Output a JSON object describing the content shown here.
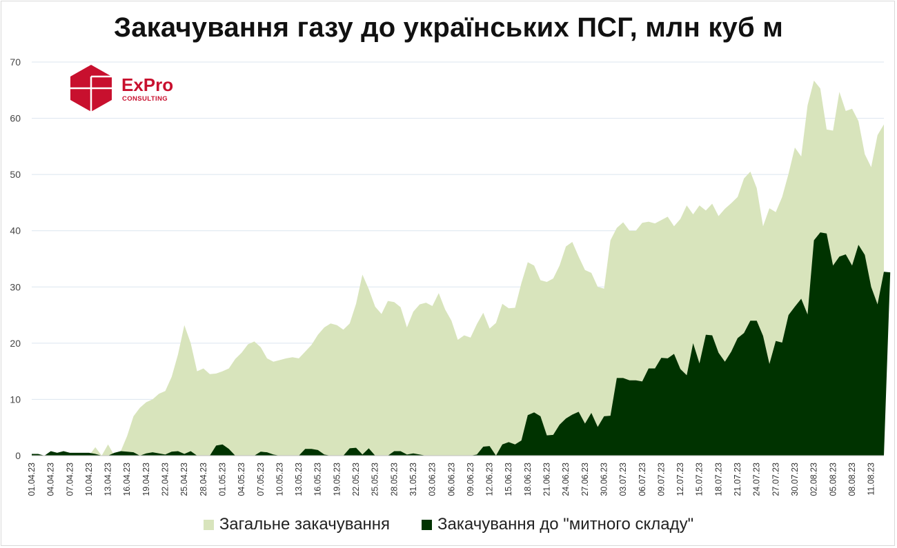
{
  "title": "Закачування газу до українських ПСГ, млн куб м",
  "logo": {
    "word": "ExPro",
    "sub": "CONSULTING",
    "color": "#c8102e"
  },
  "chart_data": {
    "type": "area",
    "title": "Закачування газу до українських ПСГ, млн куб м",
    "ylim": [
      0,
      70
    ],
    "yticks": [
      0,
      10,
      20,
      30,
      40,
      50,
      60,
      70
    ],
    "grid": true,
    "legend_position": "bottom",
    "x_tick_labels": [
      "01.04.23",
      "04.04.23",
      "07.04.23",
      "10.04.23",
      "13.04.23",
      "16.04.23",
      "19.04.23",
      "22.04.23",
      "25.04.23",
      "28.04.23",
      "01.05.23",
      "04.05.23",
      "07.05.23",
      "10.05.23",
      "13.05.23",
      "16.05.23",
      "19.05.23",
      "22.05.23",
      "25.05.23",
      "28.05.23",
      "31.05.23",
      "03.06.23",
      "06.06.23",
      "09.06.23",
      "12.06.23",
      "15.06.23",
      "18.06.23",
      "21.06.23",
      "24.06.23",
      "27.06.23",
      "30.06.23",
      "03.07.23",
      "06.07.23",
      "09.07.23",
      "12.07.23",
      "15.07.23",
      "18.07.23",
      "21.07.23",
      "24.07.23",
      "27.07.23",
      "30.07.23",
      "02.08.23",
      "05.08.23",
      "08.08.23",
      "11.08.23"
    ],
    "x_start": "01.04.23",
    "x_end": "13.08.23",
    "series": [
      {
        "name": "Загальне закачування",
        "color": "#d8e4bc",
        "values": [
          0.3,
          0.3,
          0,
          0.2,
          0,
          0,
          0,
          0,
          0,
          0,
          1.5,
          0,
          2,
          0,
          0.8,
          3.5,
          7,
          8.5,
          9.5,
          10,
          11,
          11.5,
          14,
          18,
          23.2,
          20,
          15,
          15.5,
          14.5,
          14.6,
          15,
          15.5,
          17.2,
          18.3,
          19.8,
          20.3,
          19.3,
          17.3,
          16.7,
          17,
          17.3,
          17.5,
          17.3,
          18.5,
          19.7,
          21.5,
          22.8,
          23.5,
          23.2,
          22.4,
          23.5,
          27,
          32.2,
          29.6,
          26.5,
          25.2,
          27.5,
          27.3,
          26.4,
          22.8,
          25.6,
          26.9,
          27.2,
          26.6,
          28.9,
          26,
          24,
          20.6,
          21.4,
          21,
          23.4,
          25.4,
          22.6,
          23.6,
          27,
          26.2,
          26.3,
          30.7,
          34.4,
          33.8,
          31.2,
          30.9,
          31.5,
          33.8,
          37.2,
          38,
          35.4,
          33,
          32.5,
          30,
          29.7,
          38.3,
          40.5,
          41.5,
          40,
          40,
          41.4,
          41.6,
          41.3,
          41.9,
          42.5,
          40.8,
          42.1,
          44.5,
          42.9,
          44.5,
          43.6,
          44.8,
          42.6,
          43.9,
          44.9,
          46,
          49.3,
          50.5,
          47.6,
          40.8,
          44,
          43.3,
          46,
          50.1,
          54.8,
          53.2,
          62.3,
          66.7,
          65.3,
          58,
          57.8,
          64.7,
          61.3,
          61.7,
          59.5,
          53.6,
          51.3,
          57,
          58.9
        ]
      },
      {
        "name": "Закачування до \"митного складу\"",
        "color": "#003300",
        "values": [
          0.3,
          0.3,
          0,
          0.8,
          0.5,
          0.8,
          0.5,
          0.5,
          0.5,
          0.5,
          0.3,
          0,
          0,
          0.5,
          0.8,
          0.7,
          0.6,
          0,
          0.4,
          0.6,
          0.4,
          0.2,
          0.7,
          0.8,
          0.3,
          0.8,
          0,
          0,
          0,
          1.8,
          2,
          1.2,
          0,
          0,
          0,
          0,
          0.7,
          0.6,
          0.2,
          0,
          0,
          0,
          0,
          1.2,
          1.2,
          1,
          0.2,
          0,
          0,
          0,
          1.3,
          1.4,
          0.2,
          1.3,
          0,
          0,
          0,
          0.8,
          0.8,
          0.2,
          0.4,
          0.2,
          0,
          0,
          0,
          0,
          0,
          0,
          0,
          0,
          0.2,
          1.6,
          1.7,
          0,
          2,
          2.4,
          2,
          2.7,
          7.2,
          7.7,
          7,
          3.6,
          3.7,
          5.5,
          6.6,
          7.3,
          7.8,
          5.7,
          7.6,
          5.1,
          7,
          7.1,
          13.8,
          13.8,
          13.4,
          13.4,
          13.2,
          15.5,
          15.5,
          17.4,
          17.3,
          18.1,
          15.4,
          14.3,
          20,
          16.4,
          21.5,
          21.4,
          18.3,
          16.7,
          18.5,
          20.9,
          21.8,
          24,
          24,
          21.3,
          16.3,
          20.4,
          20.1,
          25,
          26.5,
          27.9,
          25.1,
          38.3,
          39.7,
          39.5,
          33.8,
          35.4,
          35.8,
          33.8,
          37.5,
          35.7,
          30,
          26.9,
          32.7,
          32.6
        ]
      }
    ]
  }
}
